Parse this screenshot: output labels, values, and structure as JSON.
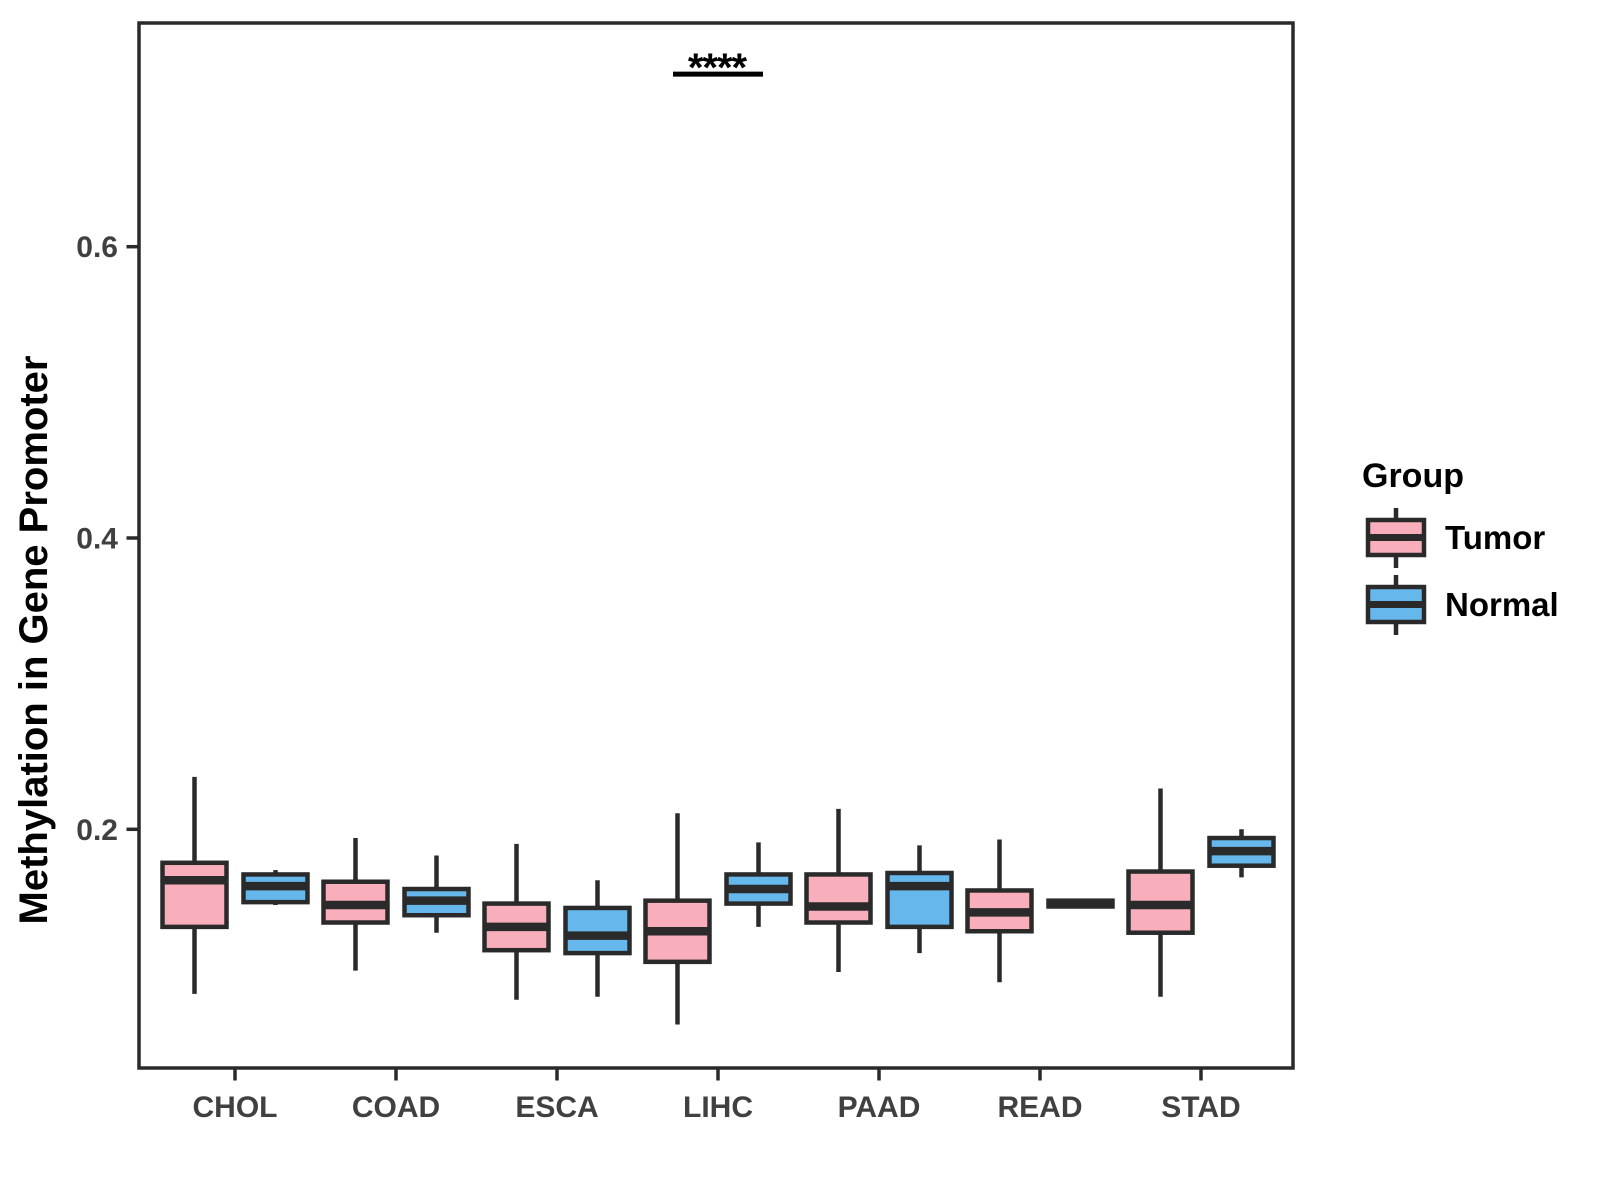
{
  "figure": {
    "background": "#FFFFFF"
  },
  "chart_data": {
    "type": "boxplot",
    "title": "",
    "xlabel": "",
    "ylabel": "Methylation in Gene Promoter",
    "categories": [
      "CHOL",
      "COAD",
      "ESCA",
      "LIHC",
      "PAAD",
      "READ",
      "STAD"
    ],
    "y_axis": {
      "min": 0.036,
      "max": 0.754,
      "ticks": [
        {
          "value": 0.2,
          "label": "0.2"
        },
        {
          "value": 0.4,
          "label": "0.4"
        },
        {
          "value": 0.6,
          "label": "0.6"
        }
      ],
      "grid": false
    },
    "colors": {
      "tumor": "#F9AEBB",
      "normal": "#66B8EC",
      "box_stroke": "#2A2A2A",
      "axis_text": "#404040",
      "title_text": "#000000"
    },
    "series": [
      {
        "name": "Tumor",
        "color_key": "tumor",
        "stats": [
          {
            "category": "CHOL",
            "whisker_low": 0.087,
            "q1": 0.133,
            "median": 0.165,
            "q3": 0.177,
            "whisker_high": 0.236
          },
          {
            "category": "COAD",
            "whisker_low": 0.103,
            "q1": 0.136,
            "median": 0.148,
            "q3": 0.164,
            "whisker_high": 0.194
          },
          {
            "category": "ESCA",
            "whisker_low": 0.083,
            "q1": 0.117,
            "median": 0.133,
            "q3": 0.149,
            "whisker_high": 0.19
          },
          {
            "category": "LIHC",
            "whisker_low": 0.066,
            "q1": 0.109,
            "median": 0.13,
            "q3": 0.151,
            "whisker_high": 0.211
          },
          {
            "category": "PAAD",
            "whisker_low": 0.102,
            "q1": 0.136,
            "median": 0.147,
            "q3": 0.169,
            "whisker_high": 0.214
          },
          {
            "category": "READ",
            "whisker_low": 0.095,
            "q1": 0.13,
            "median": 0.143,
            "q3": 0.158,
            "whisker_high": 0.193
          },
          {
            "category": "STAD",
            "whisker_low": 0.085,
            "q1": 0.129,
            "median": 0.148,
            "q3": 0.171,
            "whisker_high": 0.228
          }
        ]
      },
      {
        "name": "Normal",
        "color_key": "normal",
        "stats": [
          {
            "category": "CHOL",
            "whisker_low": 0.148,
            "q1": 0.15,
            "median": 0.161,
            "q3": 0.169,
            "whisker_high": 0.172
          },
          {
            "category": "COAD",
            "whisker_low": 0.129,
            "q1": 0.141,
            "median": 0.151,
            "q3": 0.159,
            "whisker_high": 0.182
          },
          {
            "category": "ESCA",
            "whisker_low": 0.085,
            "q1": 0.115,
            "median": 0.127,
            "q3": 0.146,
            "whisker_high": 0.165
          },
          {
            "category": "LIHC",
            "whisker_low": 0.133,
            "q1": 0.149,
            "median": 0.159,
            "q3": 0.169,
            "whisker_high": 0.191
          },
          {
            "category": "PAAD",
            "whisker_low": 0.115,
            "q1": 0.133,
            "median": 0.161,
            "q3": 0.17,
            "whisker_high": 0.189
          },
          {
            "category": "READ",
            "whisker_low": 0.146,
            "q1": 0.147,
            "median": 0.149,
            "q3": 0.151,
            "whisker_high": 0.151
          },
          {
            "category": "STAD",
            "whisker_low": 0.167,
            "q1": 0.175,
            "median": 0.185,
            "q3": 0.194,
            "whisker_high": 0.2
          }
        ]
      }
    ],
    "annotation": {
      "label": "****",
      "category": "LIHC",
      "compares": [
        "Tumor",
        "Normal"
      ],
      "line_y_value": 0.72
    },
    "legend": {
      "title": "Group",
      "position": "right",
      "items": [
        {
          "label": "Tumor",
          "color_key": "tumor"
        },
        {
          "label": "Normal",
          "color_key": "normal"
        }
      ]
    }
  }
}
